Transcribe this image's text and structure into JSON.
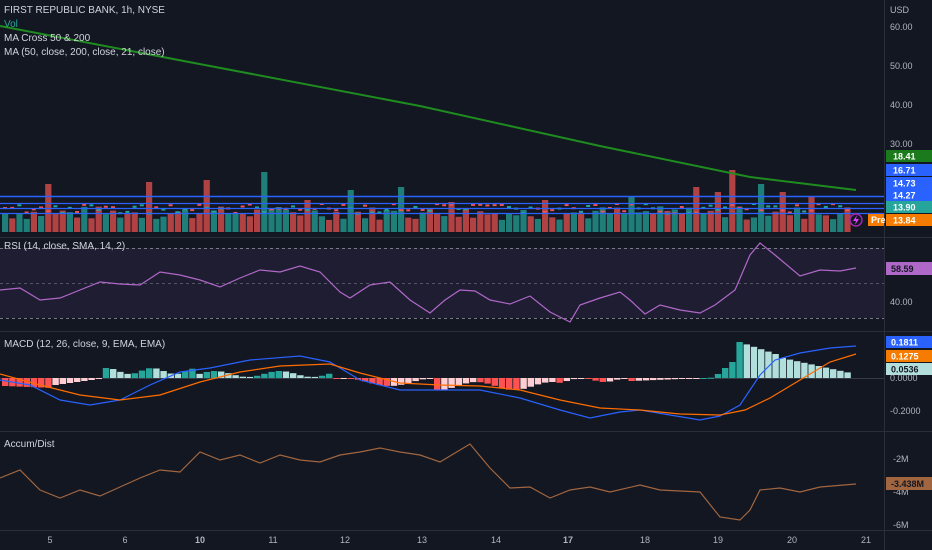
{
  "header": {
    "symbol_line": "FIRST REPUBLIC BANK, 1h, NYSE",
    "vol_label": "Vol",
    "ma_cross_label": "MA Cross 50 & 200",
    "ma_label": "MA (50, close, 200, close, 21, close)",
    "currency": "USD"
  },
  "price_pane": {
    "axis_labels": [
      "60.00",
      "50.00",
      "40.00",
      "30.00"
    ],
    "price_badges": [
      {
        "text": "18.41",
        "color": "#1b7a1b"
      },
      {
        "text": "16.71",
        "color": "#2962ff"
      },
      {
        "text": "14.73",
        "color": "#2962ff"
      },
      {
        "text": "14.27",
        "color": "#2962ff"
      },
      {
        "text": "13.90",
        "color": "#26a69a"
      },
      {
        "text": "13.84",
        "color": "#f57c00"
      }
    ],
    "pre_label": "Pre",
    "colors": {
      "ma200": "#1e8c1e",
      "bull": "#26a69a",
      "bear": "#ef5350",
      "hline": "#2962ff"
    }
  },
  "rsi_pane": {
    "title": "RSI (14, close, SMA, 14, 2)",
    "axis_labels": [
      "40.00"
    ],
    "value_badge": "58.59",
    "colors": {
      "line": "#b068c8",
      "band": "#7e57c2"
    }
  },
  "macd_pane": {
    "title": "MACD (12, 26, close, 9, EMA, EMA)",
    "axis_labels": [
      "0.0000",
      "-0.2000"
    ],
    "badges": [
      {
        "text": "0.1811",
        "color": "#2962ff"
      },
      {
        "text": "0.1275",
        "color": "#f57c00"
      },
      {
        "text": "0.0536",
        "color": "#b2dfdb"
      }
    ],
    "colors": {
      "macd": "#2962ff",
      "signal": "#ff6d00",
      "hist_up_strong": "#26a69a",
      "hist_up_weak": "#b2dfdb",
      "hist_dn_strong": "#ff5252",
      "hist_dn_weak": "#ffcdd2"
    }
  },
  "accum_pane": {
    "title": "Accum/Dist",
    "axis_labels": [
      "-2M",
      "-4M",
      "-6M"
    ],
    "value_badge": "-3.438M",
    "colors": {
      "line": "#a1663f"
    }
  },
  "time_axis": {
    "labels": [
      "5",
      "6",
      "10",
      "11",
      "12",
      "13",
      "14",
      "17",
      "18",
      "19",
      "20",
      "21"
    ]
  }
}
